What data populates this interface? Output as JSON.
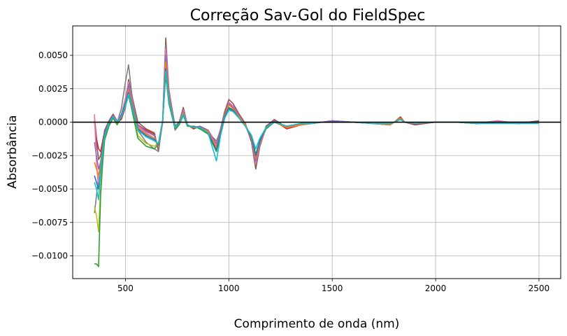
{
  "chart_data": {
    "type": "line",
    "title": "Correção Sav-Gol do FieldSpec",
    "xlabel": "Comprimento de onda (nm)",
    "ylabel": "Absorbância",
    "xlim": [
      245,
      2605
    ],
    "ylim": [
      -0.0117,
      0.0072
    ],
    "xticks": [
      500,
      1000,
      1500,
      2000,
      2500
    ],
    "xtick_labels": [
      "500",
      "1000",
      "1500",
      "2000",
      "2500"
    ],
    "yticks": [
      -0.01,
      -0.0075,
      -0.005,
      -0.0025,
      0.0,
      0.0025,
      0.005
    ],
    "ytick_labels": [
      "−0.0100",
      "−0.0075",
      "−0.0050",
      "−0.0025",
      "0.0000",
      "0.0025",
      "0.0050"
    ],
    "grid": true,
    "reference_line": {
      "y": 0,
      "color": "#000000"
    },
    "x": [
      350,
      360,
      370,
      380,
      390,
      400,
      420,
      440,
      460,
      480,
      500,
      515,
      530,
      560,
      600,
      640,
      660,
      680,
      695,
      710,
      740,
      760,
      780,
      800,
      830,
      860,
      900,
      940,
      960,
      980,
      1000,
      1020,
      1050,
      1080,
      1110,
      1130,
      1150,
      1180,
      1220,
      1280,
      1350,
      1400,
      1450,
      1500,
      1600,
      1700,
      1780,
      1800,
      1830,
      1850,
      1900,
      2000,
      2100,
      2200,
      2300,
      2400,
      2500
    ],
    "series": [
      {
        "color": "#d62728",
        "values": [
          0.0004,
          -0.0012,
          -0.002,
          -0.0022,
          -0.0014,
          -0.0006,
          0.0,
          0.0005,
          0.0,
          0.0002,
          0.0011,
          0.0026,
          0.0018,
          -0.0002,
          -0.0006,
          -0.0009,
          -0.002,
          0.0,
          0.0052,
          0.002,
          -0.0003,
          0.0,
          0.0009,
          -0.0002,
          -0.0005,
          -0.0003,
          -0.0006,
          -0.0018,
          -0.0006,
          0.0006,
          0.0014,
          0.0012,
          0.0005,
          -0.0002,
          -0.0014,
          -0.003,
          -0.0018,
          -0.0004,
          0.0001,
          -0.0005,
          -0.0002,
          -0.0001,
          0.0,
          0.0001,
          0.0,
          -0.0001,
          -0.0002,
          0.0,
          0.0003,
          0.0,
          -0.0002,
          0.0,
          0.0,
          -0.0001,
          0.0001,
          -0.0001,
          0.0001
        ]
      },
      {
        "color": "#8c564b",
        "values": [
          0.0001,
          -0.0015,
          -0.0028,
          -0.0025,
          -0.0016,
          -0.0006,
          0.0001,
          0.0006,
          0.0001,
          0.0003,
          0.0013,
          0.0032,
          0.0021,
          0.0,
          -0.0005,
          -0.0008,
          -0.0022,
          0.0002,
          0.0063,
          0.0024,
          -0.0003,
          0.0,
          0.0011,
          -0.0002,
          -0.0004,
          -0.0003,
          -0.0007,
          -0.0016,
          -0.0005,
          0.0008,
          0.0017,
          0.0014,
          0.0006,
          -0.0001,
          -0.0015,
          -0.0035,
          -0.0018,
          -0.0003,
          0.0002,
          -0.0004,
          -0.0002,
          -0.0001,
          0.0,
          0.0001,
          0.0,
          -0.0001,
          -0.0002,
          0.0,
          0.0004,
          0.0,
          -0.0001,
          0.0,
          0.0,
          -0.0001,
          0.0001,
          -0.0001,
          0.0001
        ]
      },
      {
        "color": "#7f7f7f",
        "values": [
          -0.0068,
          -0.0055,
          -0.004,
          -0.003,
          -0.002,
          -0.0009,
          -0.0002,
          0.0004,
          0.0,
          0.001,
          0.003,
          0.0043,
          0.0022,
          -0.0006,
          -0.0015,
          -0.002,
          -0.0022,
          0.0002,
          0.0058,
          0.0025,
          -0.0006,
          -0.0002,
          0.0007,
          -0.0003,
          -0.0003,
          -0.0004,
          -0.0008,
          -0.0014,
          -0.0006,
          0.0005,
          0.0013,
          0.0011,
          0.0004,
          -0.0003,
          -0.0012,
          -0.0028,
          -0.0016,
          -0.0005,
          0.0,
          -0.0004,
          -0.0002,
          -0.0001,
          0.0,
          0.0,
          0.0,
          -0.0001,
          -0.0002,
          0.0,
          0.0003,
          0.0,
          -0.0001,
          0.0,
          0.0,
          -0.0001,
          0.0,
          0.0,
          0.0
        ]
      },
      {
        "color": "#e377c2",
        "values": [
          0.0006,
          -0.003,
          -0.005,
          -0.004,
          -0.0025,
          -0.001,
          0.0,
          0.0005,
          0.0001,
          0.0006,
          0.0018,
          0.003,
          0.0018,
          -0.0003,
          -0.0008,
          -0.0012,
          -0.0018,
          0.0001,
          0.0055,
          0.0022,
          -0.0004,
          -0.0001,
          0.0009,
          -0.0002,
          -0.0004,
          -0.0004,
          -0.0007,
          -0.0017,
          -0.0006,
          0.0006,
          0.0015,
          0.0012,
          0.0005,
          -0.0002,
          -0.0013,
          -0.0031,
          -0.0017,
          -0.0004,
          0.0001,
          -0.0004,
          -0.0002,
          -0.0001,
          0.0,
          0.0001,
          0.0,
          -0.0001,
          -0.0002,
          0.0,
          0.0003,
          0.0,
          -0.0001,
          0.0,
          0.0,
          -0.0001,
          0.0001,
          -0.0001,
          0.0
        ]
      },
      {
        "color": "#bcbd22",
        "values": [
          -0.0063,
          -0.007,
          -0.0082,
          -0.005,
          -0.003,
          -0.0012,
          -0.0002,
          0.0004,
          -0.0001,
          0.0005,
          0.0015,
          0.0025,
          0.0012,
          -0.001,
          -0.0016,
          -0.0018,
          -0.0015,
          0.0002,
          0.004,
          0.0016,
          -0.0005,
          -0.0002,
          0.0006,
          -0.0003,
          -0.0003,
          -0.0005,
          -0.0008,
          -0.002,
          -0.0008,
          0.0004,
          0.0011,
          0.0009,
          0.0003,
          -0.0003,
          -0.0011,
          -0.0026,
          -0.0015,
          -0.0005,
          0.0,
          -0.0003,
          -0.0001,
          -0.0001,
          0.0,
          0.0,
          0.0,
          -0.0001,
          -0.0001,
          0.0,
          0.0002,
          0.0,
          -0.0001,
          0.0,
          0.0,
          0.0,
          0.0,
          0.0,
          0.0
        ]
      },
      {
        "color": "#2ca02c",
        "values": [
          -0.0106,
          -0.0106,
          -0.0108,
          -0.0055,
          -0.003,
          -0.0013,
          -0.0003,
          0.0003,
          -0.0002,
          0.0004,
          0.0012,
          0.002,
          0.001,
          -0.0012,
          -0.0018,
          -0.002,
          -0.0016,
          0.0001,
          0.0035,
          0.0014,
          -0.0005,
          -0.0002,
          0.0005,
          -0.0003,
          -0.0003,
          -0.0005,
          -0.0009,
          -0.0022,
          -0.0009,
          0.0003,
          0.001,
          0.0008,
          0.0003,
          -0.0003,
          -0.001,
          -0.0024,
          -0.0014,
          -0.0005,
          0.0,
          -0.0003,
          -0.0001,
          -0.0001,
          0.0,
          0.0,
          0.0,
          -0.0001,
          -0.0001,
          0.0,
          0.0002,
          0.0,
          -0.0001,
          0.0,
          0.0,
          0.0,
          0.0,
          0.0,
          0.0
        ]
      },
      {
        "color": "#9467bd",
        "values": [
          -0.0015,
          -0.0025,
          -0.0035,
          -0.003,
          -0.0019,
          -0.0008,
          0.0,
          0.0005,
          0.0,
          0.0004,
          0.0014,
          0.0028,
          0.0017,
          -0.0002,
          -0.0007,
          -0.001,
          -0.0019,
          0.0001,
          0.005,
          0.0021,
          -0.0003,
          -0.0001,
          0.0008,
          -0.0002,
          -0.0004,
          -0.0003,
          -0.0006,
          -0.0016,
          -0.0005,
          0.0006,
          0.0014,
          0.0011,
          0.0005,
          -0.0002,
          -0.0013,
          -0.0029,
          -0.0016,
          -0.0004,
          0.0001,
          -0.0004,
          -0.0002,
          -0.0001,
          0.0,
          0.0001,
          0.0,
          -0.0001,
          -0.0002,
          0.0,
          0.0003,
          0.0,
          -0.0001,
          0.0,
          0.0,
          -0.0001,
          0.0,
          -0.0001,
          0.0
        ]
      },
      {
        "color": "#ff7f0e",
        "values": [
          -0.003,
          -0.0035,
          -0.004,
          -0.0033,
          -0.0021,
          -0.0009,
          -0.0001,
          0.0004,
          0.0,
          0.0004,
          0.0013,
          0.0024,
          0.0015,
          -0.0004,
          -0.0009,
          -0.0012,
          -0.0018,
          0.0001,
          0.0045,
          0.0019,
          -0.0004,
          -0.0001,
          0.0007,
          -0.0002,
          -0.0004,
          -0.0004,
          -0.0007,
          -0.0019,
          -0.0007,
          0.0005,
          0.0013,
          0.001,
          0.0004,
          -0.0002,
          -0.0012,
          -0.0027,
          -0.0015,
          -0.0004,
          0.0,
          -0.0004,
          -0.0002,
          -0.0001,
          0.0,
          0.0,
          0.0,
          -0.0001,
          -0.0002,
          0.0,
          0.0003,
          0.0,
          -0.0001,
          0.0,
          0.0,
          -0.0001,
          0.0,
          0.0,
          0.0
        ]
      },
      {
        "color": "#1f77b4",
        "values": [
          -0.004,
          -0.0045,
          -0.005,
          -0.0036,
          -0.0022,
          -0.0009,
          -0.0001,
          0.0004,
          0.0,
          0.0005,
          0.0014,
          0.0022,
          0.0013,
          -0.0005,
          -0.001,
          -0.0013,
          -0.0017,
          0.0001,
          0.004,
          0.0017,
          -0.0004,
          -0.0001,
          0.0006,
          -0.0002,
          -0.0004,
          -0.0004,
          -0.0008,
          -0.0021,
          -0.0008,
          0.0004,
          0.0011,
          0.0009,
          0.0003,
          -0.0003,
          -0.0011,
          -0.0025,
          -0.0014,
          -0.0004,
          0.0,
          -0.0003,
          -0.0001,
          -0.0001,
          0.0,
          0.0,
          0.0,
          -0.0001,
          -0.0001,
          0.0,
          0.0002,
          0.0,
          -0.0001,
          0.0,
          0.0,
          -0.0001,
          0.0,
          0.0,
          0.0
        ]
      },
      {
        "color": "#17becf",
        "values": [
          -0.0045,
          -0.005,
          -0.0058,
          -0.0038,
          -0.0023,
          -0.001,
          -0.0001,
          0.0004,
          0.0,
          0.0004,
          0.0012,
          0.0021,
          0.0012,
          -0.0006,
          -0.0011,
          -0.0014,
          -0.0016,
          0.0001,
          0.0038,
          0.0016,
          -0.0004,
          -0.0001,
          0.0006,
          -0.0002,
          -0.0004,
          -0.0004,
          -0.0008,
          -0.0029,
          -0.001,
          0.0003,
          0.0009,
          0.0008,
          0.0003,
          -0.0003,
          -0.001,
          -0.002,
          -0.0012,
          -0.0004,
          0.0,
          -0.0003,
          -0.0001,
          -0.0001,
          0.0,
          0.0,
          0.0,
          -0.0001,
          -0.0001,
          0.0,
          0.0002,
          0.0,
          -0.0001,
          0.0,
          0.0,
          -0.0001,
          -0.0001,
          -0.0001,
          -0.0001
        ]
      }
    ]
  }
}
